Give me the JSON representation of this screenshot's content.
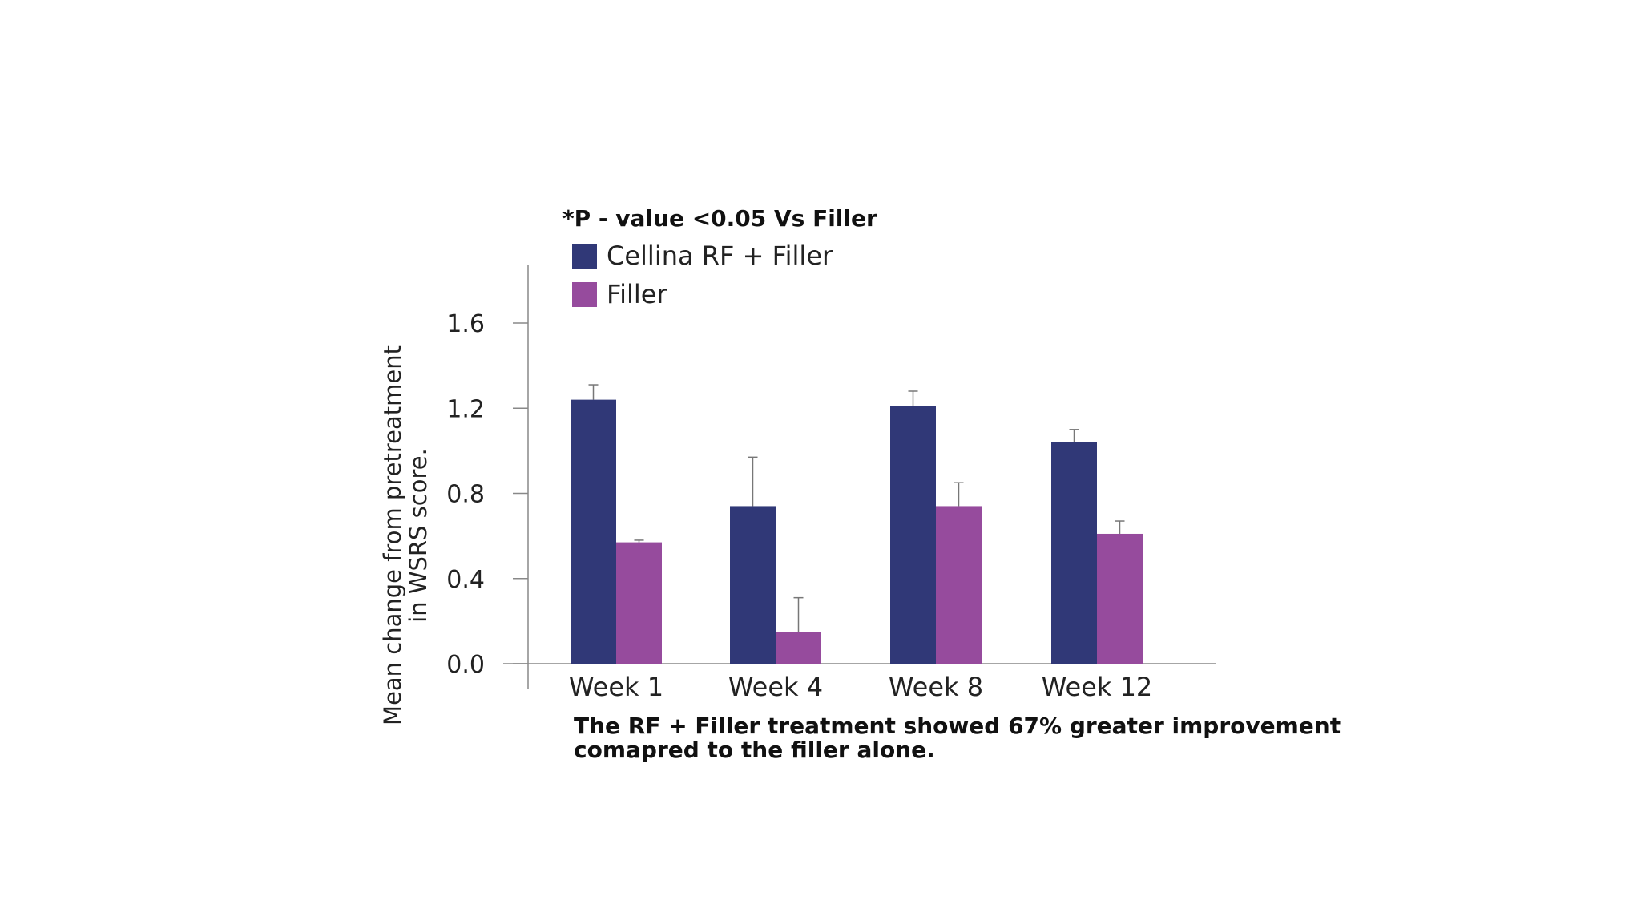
{
  "chart_data": {
    "type": "bar",
    "title": "",
    "note": "*P - value <0.05 Vs Filler",
    "caption_lines": [
      "The RF + Filler treatment showed 67% greater improvement",
      "comapred to the filler alone."
    ],
    "xlabel": "",
    "ylabel_lines": [
      "Mean change from pretreatment",
      "in WSRS score."
    ],
    "ylim": [
      0,
      1.6
    ],
    "yticks": [
      0.0,
      0.4,
      0.8,
      1.2,
      1.6
    ],
    "ytick_labels": [
      "0.0",
      "0.4",
      "0.8",
      "1.2",
      "1.6"
    ],
    "categories": [
      "Week 1",
      "Week 4",
      "Week 8",
      "Week 12"
    ],
    "series": [
      {
        "name": "Cellina RF + Filler",
        "color": "#303877",
        "values": [
          1.24,
          0.74,
          1.21,
          1.04
        ],
        "error": [
          0.07,
          0.23,
          0.07,
          0.06
        ]
      },
      {
        "name": "Filler",
        "color": "#964B9D",
        "values": [
          0.57,
          0.15,
          0.74,
          0.61
        ],
        "error": [
          0.01,
          0.16,
          0.11,
          0.06
        ]
      }
    ],
    "grid": false,
    "legend_position": "top-left"
  }
}
